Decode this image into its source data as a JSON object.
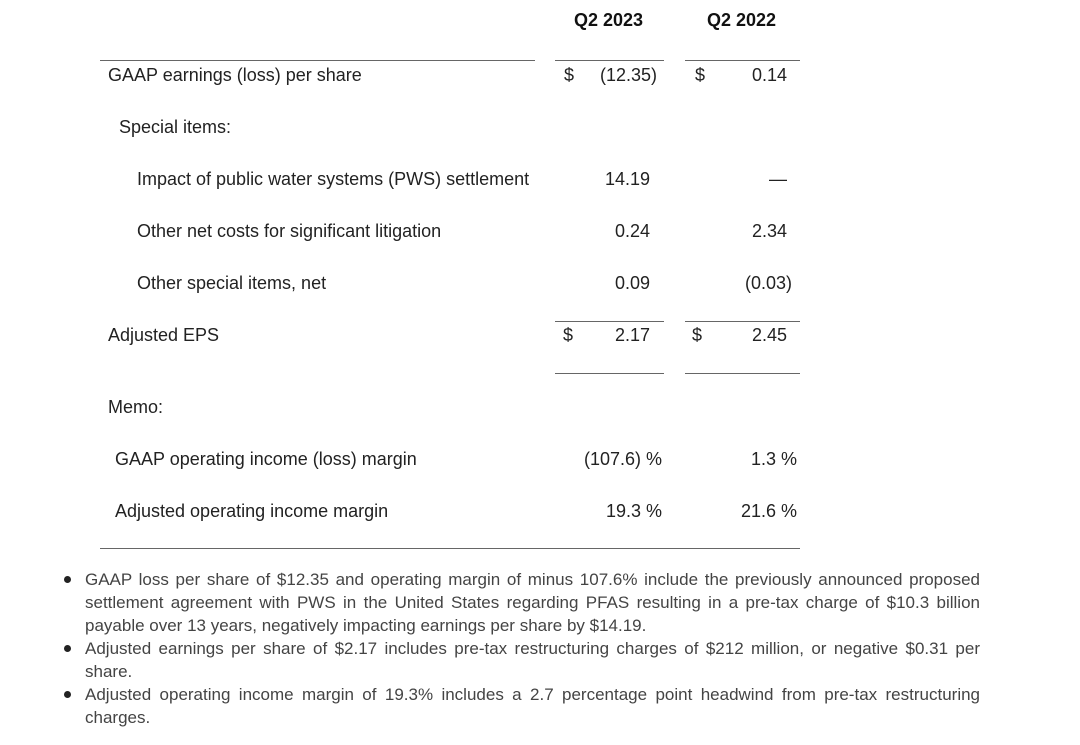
{
  "table": {
    "columns": [
      "Q2 2023",
      "Q2 2022"
    ],
    "rows": {
      "gaap_eps": {
        "label": "GAAP earnings (loss) per share",
        "cur_sign": "$",
        "v2023": "(12.35)",
        "v2022": "0.14"
      },
      "special_items": {
        "label": "Special items:"
      },
      "pws": {
        "label": "Impact of public water systems (PWS) settlement",
        "v2023": "14.19",
        "v2022": "—"
      },
      "litigation": {
        "label": "Other net costs for significant litigation",
        "v2023": "0.24",
        "v2022": "2.34"
      },
      "other_special": {
        "label": "Other special items, net",
        "v2023": "0.09",
        "v2022": "(0.03)"
      },
      "adjusted_eps": {
        "label": "Adjusted EPS",
        "cur_sign": "$",
        "v2023": "2.17",
        "v2022": "2.45"
      },
      "memo": {
        "label": "Memo:"
      },
      "gaap_margin": {
        "label": "GAAP operating income (loss) margin",
        "v2023": "(107.6) %",
        "v2022": "1.3 %"
      },
      "adj_margin": {
        "label": "Adjusted operating income margin",
        "v2023": "19.3 %",
        "v2022": "21.6 %"
      }
    }
  },
  "bullets": [
    "GAAP loss per share of $12.35 and operating margin of minus 107.6% include the previously announced proposed settlement agreement with PWS in the United States regarding PFAS resulting in a pre-tax charge of $10.3 billion payable over 13 years, negatively impacting earnings per share by $14.19.",
    "Adjusted earnings per share of $2.17 includes pre-tax restructuring charges of $212 million, or negative $0.31 per share.",
    "Adjusted operating income margin of 19.3% includes a 2.7 percentage point headwind from pre-tax restructuring charges."
  ]
}
